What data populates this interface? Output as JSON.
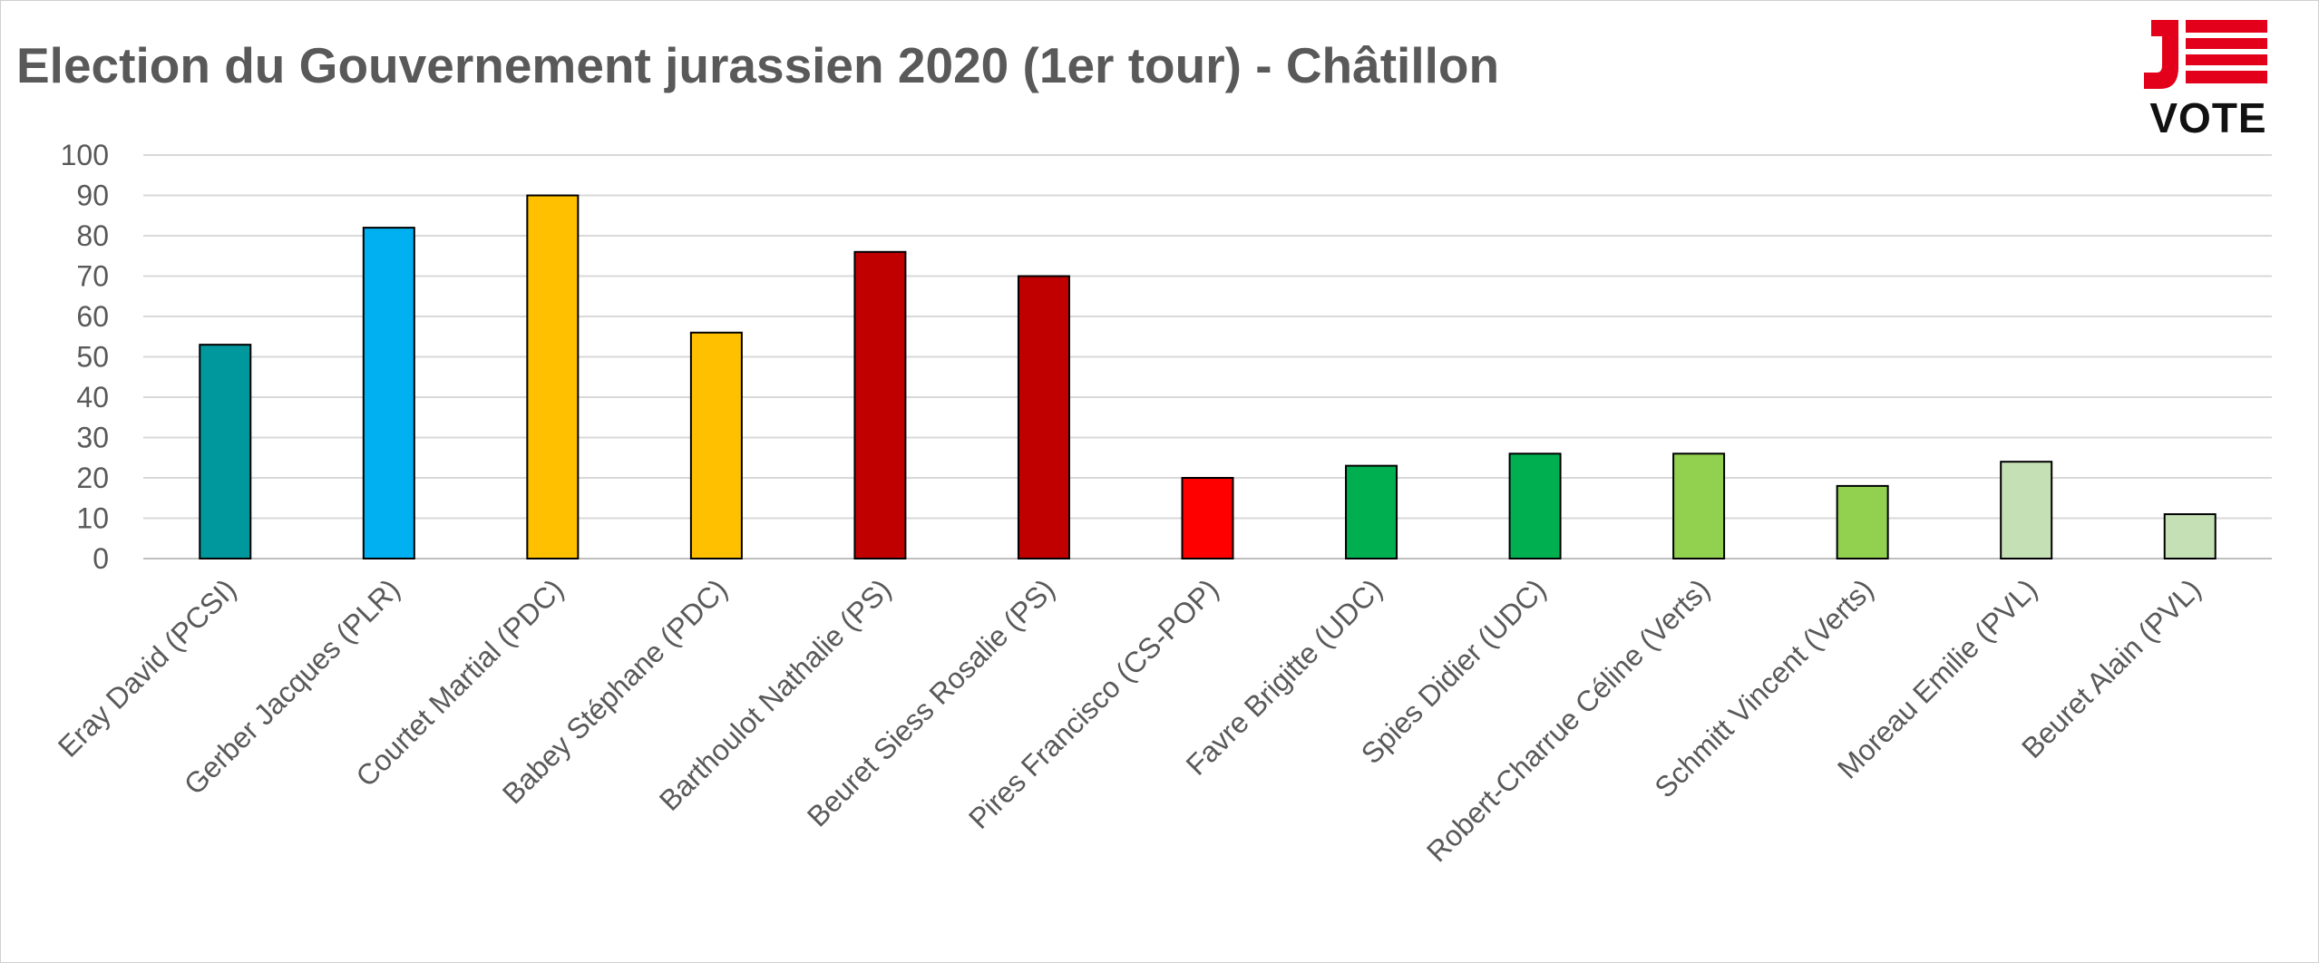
{
  "chart_data": {
    "type": "bar",
    "title": "Election du Gouvernement jurassien 2020 (1er tour) - Châtillon",
    "xlabel": "",
    "ylabel": "",
    "ylim": [
      0,
      100
    ],
    "yticks": [
      0,
      10,
      20,
      30,
      40,
      50,
      60,
      70,
      80,
      90,
      100
    ],
    "grid": true,
    "categories": [
      "Eray David (PCSI)",
      "Gerber Jacques (PLR)",
      "Courtet Martial (PDC)",
      "Babey Stéphane (PDC)",
      "Barthoulot Nathalie (PS)",
      "Beuret Siess Rosalie (PS)",
      "Pires Francisco (CS-POP)",
      "Favre Brigitte (UDC)",
      "Spies Didier (UDC)",
      "Robert-Charrue Céline (Verts)",
      "Schmitt Vincent (Verts)",
      "Moreau Emilie (PVL)",
      "Beuret Alain (PVL)"
    ],
    "values": [
      53,
      82,
      90,
      56,
      76,
      70,
      20,
      23,
      26,
      26,
      18,
      24,
      11
    ],
    "colors": [
      "#00979D",
      "#00B0F0",
      "#FFC000",
      "#FFC000",
      "#C00000",
      "#C00000",
      "#FF0000",
      "#00B050",
      "#00B050",
      "#92D050",
      "#92D050",
      "#C5E0B4",
      "#C5E0B4"
    ]
  },
  "logo": {
    "letters": "JE",
    "word": "VOTE",
    "red": "#E2001A"
  }
}
